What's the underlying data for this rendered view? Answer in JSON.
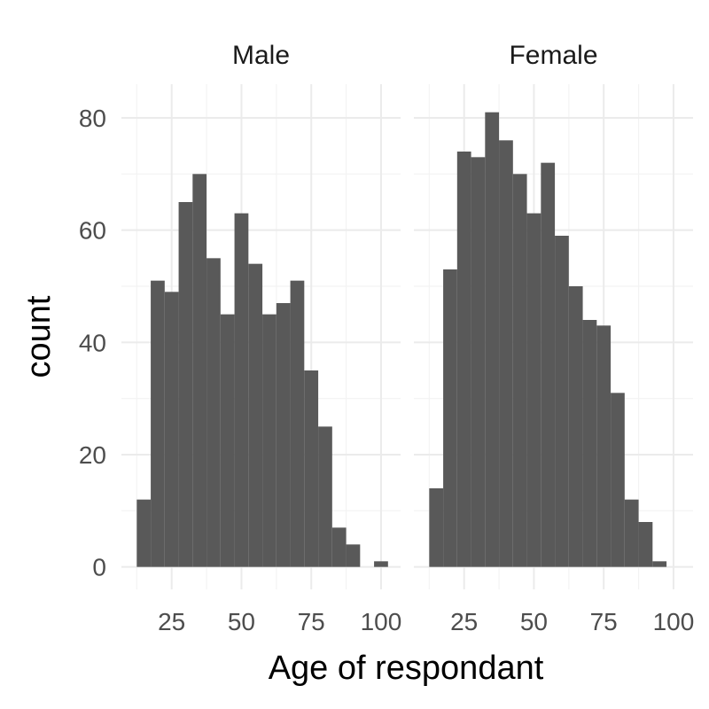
{
  "chart_data": {
    "type": "bar",
    "subtype": "faceted-histogram",
    "xlabel": "Age of respondant",
    "ylabel": "count",
    "xlim": [
      7,
      107
    ],
    "ylim": [
      -4,
      86
    ],
    "x_ticks": [
      25,
      50,
      75,
      100
    ],
    "y_ticks": [
      0,
      20,
      40,
      60,
      80
    ],
    "x_minor_ticks": [
      12.5,
      37.5,
      62.5,
      87.5
    ],
    "y_minor_ticks": [
      10,
      30,
      50,
      70
    ],
    "grid": true,
    "bar_color": "#595959",
    "bin_width": 5,
    "facets": [
      {
        "label": "Male",
        "bins": [
          {
            "x0": 12.5,
            "x1": 17.5,
            "count": 12
          },
          {
            "x0": 17.5,
            "x1": 22.5,
            "count": 51
          },
          {
            "x0": 22.5,
            "x1": 27.5,
            "count": 49
          },
          {
            "x0": 27.5,
            "x1": 32.5,
            "count": 65
          },
          {
            "x0": 32.5,
            "x1": 37.5,
            "count": 70
          },
          {
            "x0": 37.5,
            "x1": 42.5,
            "count": 55
          },
          {
            "x0": 42.5,
            "x1": 47.5,
            "count": 45
          },
          {
            "x0": 47.5,
            "x1": 52.5,
            "count": 63
          },
          {
            "x0": 52.5,
            "x1": 57.5,
            "count": 54
          },
          {
            "x0": 57.5,
            "x1": 62.5,
            "count": 45
          },
          {
            "x0": 62.5,
            "x1": 67.5,
            "count": 47
          },
          {
            "x0": 67.5,
            "x1": 72.5,
            "count": 51
          },
          {
            "x0": 72.5,
            "x1": 77.5,
            "count": 35
          },
          {
            "x0": 77.5,
            "x1": 82.5,
            "count": 25
          },
          {
            "x0": 82.5,
            "x1": 87.5,
            "count": 7
          },
          {
            "x0": 87.5,
            "x1": 92.5,
            "count": 4
          },
          {
            "x0": 92.5,
            "x1": 97.5,
            "count": 0
          },
          {
            "x0": 97.5,
            "x1": 102.5,
            "count": 1
          }
        ]
      },
      {
        "label": "Female",
        "bins": [
          {
            "x0": 12.5,
            "x1": 17.5,
            "count": 14
          },
          {
            "x0": 17.5,
            "x1": 22.5,
            "count": 53
          },
          {
            "x0": 22.5,
            "x1": 27.5,
            "count": 74
          },
          {
            "x0": 27.5,
            "x1": 32.5,
            "count": 73
          },
          {
            "x0": 32.5,
            "x1": 37.5,
            "count": 81
          },
          {
            "x0": 37.5,
            "x1": 42.5,
            "count": 76
          },
          {
            "x0": 42.5,
            "x1": 47.5,
            "count": 70
          },
          {
            "x0": 47.5,
            "x1": 52.5,
            "count": 63
          },
          {
            "x0": 52.5,
            "x1": 57.5,
            "count": 72
          },
          {
            "x0": 57.5,
            "x1": 62.5,
            "count": 59
          },
          {
            "x0": 62.5,
            "x1": 67.5,
            "count": 50
          },
          {
            "x0": 67.5,
            "x1": 72.5,
            "count": 44
          },
          {
            "x0": 72.5,
            "x1": 77.5,
            "count": 43
          },
          {
            "x0": 77.5,
            "x1": 82.5,
            "count": 31
          },
          {
            "x0": 82.5,
            "x1": 87.5,
            "count": 12
          },
          {
            "x0": 87.5,
            "x1": 92.5,
            "count": 8
          },
          {
            "x0": 92.5,
            "x1": 97.5,
            "count": 1
          }
        ]
      }
    ]
  }
}
